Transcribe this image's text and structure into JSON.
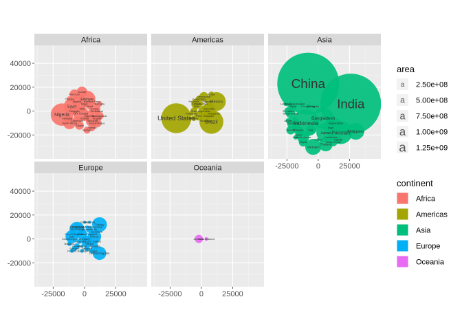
{
  "chart_data": {
    "type": "scatter",
    "facet_by": "continent",
    "xlim": [
      -40000,
      50000
    ],
    "ylim": [
      -40000,
      55000
    ],
    "x_ticks": [
      -25000,
      0,
      25000
    ],
    "y_ticks": [
      -20000,
      0,
      20000,
      40000
    ],
    "x_tick_labels": [
      "-25000",
      "0",
      "25000"
    ],
    "y_tick_labels": [
      "-20000",
      "0",
      "20000",
      "40000"
    ],
    "grid": true,
    "panels": [
      {
        "name": "Africa",
        "color": "#F8766D",
        "points": [
          {
            "label": "Nigeria",
            "x": -18000,
            "y": -3000,
            "area": 180000000
          },
          {
            "label": "Ethiopia",
            "x": 2000,
            "y": 10000,
            "area": 100000000
          },
          {
            "label": "Egypt",
            "x": -10000,
            "y": 4000,
            "area": 95000000
          },
          {
            "label": "DR Congo",
            "x": -3000,
            "y": -2000,
            "area": 80000000
          },
          {
            "label": "South Africa",
            "x": -12000,
            "y": -10000,
            "area": 55000000
          },
          {
            "label": "Tanzania",
            "x": 6000,
            "y": -8000,
            "area": 55000000
          },
          {
            "label": "Kenya",
            "x": 8000,
            "y": 2000,
            "area": 48000000
          },
          {
            "label": "Algeria",
            "x": -6000,
            "y": 8000,
            "area": 40000000
          },
          {
            "label": "Uganda",
            "x": 4000,
            "y": -4000,
            "area": 40000000
          },
          {
            "label": "Sudan",
            "x": -2000,
            "y": 16000,
            "area": 40000000
          },
          {
            "label": "Morocco",
            "x": -8000,
            "y": 14000,
            "area": 34000000
          },
          {
            "label": "Ghana",
            "x": -4000,
            "y": -12000,
            "area": 27000000
          },
          {
            "label": "Angola",
            "x": 10000,
            "y": -6000,
            "area": 25000000
          },
          {
            "label": "Mozambique",
            "x": 10000,
            "y": -10000,
            "area": 28000000
          },
          {
            "label": "Madagascar",
            "x": 12000,
            "y": -4000,
            "area": 24000000
          },
          {
            "label": "Cameroon",
            "x": -6000,
            "y": -8000,
            "area": 23000000
          },
          {
            "label": "Niger",
            "x": 0,
            "y": 6000,
            "area": 19000000
          },
          {
            "label": "Mali",
            "x": -2000,
            "y": 2000,
            "area": 17000000
          },
          {
            "label": "Zambia",
            "x": 6000,
            "y": -14000,
            "area": 16000000
          },
          {
            "label": "Malawi",
            "x": 2000,
            "y": -16000,
            "area": 17000000
          },
          {
            "label": "Zimbabwe",
            "x": 10000,
            "y": 0,
            "area": 15000000
          },
          {
            "label": "Senegal",
            "x": -14000,
            "y": -6000,
            "area": 14000000
          },
          {
            "label": "Chad",
            "x": 4000,
            "y": 4000,
            "area": 13000000
          },
          {
            "label": "Burkina Faso",
            "x": 6000,
            "y": 8000,
            "area": 17000000
          },
          {
            "label": "Somalia",
            "x": 12000,
            "y": 6000,
            "area": 11000000
          },
          {
            "label": "Tunisia",
            "x": -12000,
            "y": 10000,
            "area": 11000000
          },
          {
            "label": "Rwanda",
            "x": -8000,
            "y": 0,
            "area": 12000000
          },
          {
            "label": "Guinea",
            "x": 0,
            "y": -6000,
            "area": 12000000
          }
        ]
      },
      {
        "name": "Americas",
        "color": "#A3A500",
        "points": [
          {
            "label": "United States",
            "x": -20000,
            "y": -6000,
            "area": 320000000
          },
          {
            "label": "Brazil",
            "x": 8000,
            "y": -9000,
            "area": 205000000
          },
          {
            "label": "Mexico",
            "x": 12000,
            "y": 8000,
            "area": 125000000
          },
          {
            "label": "Colombia",
            "x": 6000,
            "y": 2000,
            "area": 48000000
          },
          {
            "label": "Argentina",
            "x": 2000,
            "y": 0,
            "area": 43000000
          },
          {
            "label": "Canada",
            "x": -4000,
            "y": 6000,
            "area": 36000000
          },
          {
            "label": "Peru",
            "x": -2000,
            "y": -4000,
            "area": 31000000
          },
          {
            "label": "Venezuela",
            "x": 2000,
            "y": 12000,
            "area": 31000000
          },
          {
            "label": "Chile",
            "x": -6000,
            "y": 0,
            "area": 18000000
          },
          {
            "label": "Ecuador",
            "x": 6000,
            "y": -4000,
            "area": 16000000
          },
          {
            "label": "Guatemala",
            "x": -2000,
            "y": 10000,
            "area": 16000000
          },
          {
            "label": "Cuba",
            "x": 8000,
            "y": 14000,
            "area": 11000000
          },
          {
            "label": "Bolivia",
            "x": -6000,
            "y": -6000,
            "area": 11000000
          },
          {
            "label": "Haiti",
            "x": -4000,
            "y": 4000,
            "area": 11000000
          },
          {
            "label": "Honduras",
            "x": 10000,
            "y": -2000,
            "area": 8000000
          },
          {
            "label": "Paraguay",
            "x": -8000,
            "y": -2000,
            "area": 7000000
          },
          {
            "label": "Nicaragua",
            "x": 4000,
            "y": -8000,
            "area": 6000000
          },
          {
            "label": "Costa Rica",
            "x": 0,
            "y": 6000,
            "area": 5000000
          },
          {
            "label": "Panama",
            "x": -6000,
            "y": 8000,
            "area": 4000000
          },
          {
            "label": "Uruguay",
            "x": 4000,
            "y": 8000,
            "area": 3400000
          }
        ]
      },
      {
        "name": "Asia",
        "color": "#00BF7D",
        "points": [
          {
            "label": "China",
            "x": -8000,
            "y": 23000,
            "area": 1370000000
          },
          {
            "label": "India",
            "x": 26000,
            "y": 6000,
            "area": 1310000000
          },
          {
            "label": "Indonesia",
            "x": -10000,
            "y": -10000,
            "area": 258000000
          },
          {
            "label": "Pakistan",
            "x": 18000,
            "y": -18000,
            "area": 190000000
          },
          {
            "label": "Bangladesh",
            "x": 4000,
            "y": -6000,
            "area": 160000000
          },
          {
            "label": "Japan",
            "x": 6000,
            "y": -18000,
            "area": 127000000
          },
          {
            "label": "Philippines",
            "x": 30000,
            "y": -17000,
            "area": 100000000
          },
          {
            "label": "Vietnam",
            "x": -4000,
            "y": -30000,
            "area": 92000000
          },
          {
            "label": "Iran",
            "x": 10000,
            "y": -14000,
            "area": 79000000
          },
          {
            "label": "Thailand",
            "x": 6000,
            "y": -28000,
            "area": 68000000
          },
          {
            "label": "Myanmar",
            "x": -20000,
            "y": -10000,
            "area": 54000000
          },
          {
            "label": "South Korea",
            "x": -12000,
            "y": -22000,
            "area": 51000000
          },
          {
            "label": "Iraq",
            "x": -6000,
            "y": -16000,
            "area": 36000000
          },
          {
            "label": "Afghanistan",
            "x": 14000,
            "y": -10000,
            "area": 33000000
          },
          {
            "label": "Saudi Arabia",
            "x": -22000,
            "y": -2000,
            "area": 32000000
          },
          {
            "label": "Malaysia",
            "x": -16000,
            "y": -16000,
            "area": 30000000
          },
          {
            "label": "Nepal",
            "x": -12000,
            "y": -26000,
            "area": 28000000
          },
          {
            "label": "Yemen",
            "x": -22000,
            "y": -16000,
            "area": 27000000
          },
          {
            "label": "Taiwan",
            "x": 16000,
            "y": -24000,
            "area": 23000000
          },
          {
            "label": "Sri Lanka",
            "x": -24000,
            "y": 0,
            "area": 21000000
          },
          {
            "label": "Syria",
            "x": -20000,
            "y": 4000,
            "area": 18000000
          },
          {
            "label": "Cambodia",
            "x": 10000,
            "y": -22000,
            "area": 15000000
          },
          {
            "label": "Jordan",
            "x": -24000,
            "y": -8000,
            "area": 9000000
          },
          {
            "label": "Israel",
            "x": -16000,
            "y": -20000,
            "area": 8000000
          },
          {
            "label": "Hong Kong",
            "x": -8000,
            "y": 4000,
            "area": 7000000
          },
          {
            "label": "Laos",
            "x": -18000,
            "y": -22000,
            "area": 7000000
          },
          {
            "label": "Lebanon",
            "x": -26000,
            "y": 6000,
            "area": 6000000
          },
          {
            "label": "Mongolia",
            "x": -4000,
            "y": 4000,
            "area": 3000000
          },
          {
            "label": "Oman",
            "x": 0,
            "y": -24000,
            "area": 4000000
          },
          {
            "label": "Kuwait",
            "x": -14000,
            "y": 6000,
            "area": 4000000
          },
          {
            "label": "Singapore",
            "x": -22000,
            "y": 6000,
            "area": 5500000
          },
          {
            "label": "North Korea",
            "x": 12000,
            "y": -26000,
            "area": 25000000
          }
        ]
      },
      {
        "name": "Europe",
        "color": "#00B0F6",
        "points": [
          {
            "label": "Germany",
            "x": -6000,
            "y": 8000,
            "area": 81000000
          },
          {
            "label": "Turkey",
            "x": 12000,
            "y": 12000,
            "area": 78000000
          },
          {
            "label": "United Kingdom",
            "x": 12000,
            "y": -12000,
            "area": 65000000
          },
          {
            "label": "France",
            "x": 8000,
            "y": 2000,
            "area": 64000000
          },
          {
            "label": "Italy",
            "x": -10000,
            "y": 2000,
            "area": 60000000
          },
          {
            "label": "Spain",
            "x": 2000,
            "y": -2000,
            "area": 46000000
          },
          {
            "label": "Poland",
            "x": -2000,
            "y": 4000,
            "area": 38000000
          },
          {
            "label": "Romania",
            "x": 8000,
            "y": -6000,
            "area": 20000000
          },
          {
            "label": "Netherlands",
            "x": 4000,
            "y": 8000,
            "area": 17000000
          },
          {
            "label": "Belgium",
            "x": 2000,
            "y": -8000,
            "area": 11000000
          },
          {
            "label": "Greece",
            "x": -6000,
            "y": -6000,
            "area": 11000000
          },
          {
            "label": "Czech Republic",
            "x": -8000,
            "y": 4000,
            "area": 10500000
          },
          {
            "label": "Portugal",
            "x": 6000,
            "y": -10000,
            "area": 10300000
          },
          {
            "label": "Sweden",
            "x": -8000,
            "y": -8000,
            "area": 9800000
          },
          {
            "label": "Hungary",
            "x": 0,
            "y": 0,
            "area": 9800000
          },
          {
            "label": "Austria",
            "x": -4000,
            "y": -2000,
            "area": 8600000
          },
          {
            "label": "Switzerland",
            "x": -6000,
            "y": 10000,
            "area": 8300000
          },
          {
            "label": "Serbia",
            "x": 4000,
            "y": -4000,
            "area": 7100000
          },
          {
            "label": "Bulgaria",
            "x": -12000,
            "y": -4000,
            "area": 7100000
          },
          {
            "label": "Denmark",
            "x": 10000,
            "y": 6000,
            "area": 5700000
          },
          {
            "label": "Finland",
            "x": -10000,
            "y": -10000,
            "area": 5500000
          },
          {
            "label": "Slovakia",
            "x": 6000,
            "y": 4000,
            "area": 5400000
          },
          {
            "label": "Norway",
            "x": -2000,
            "y": -10000,
            "area": 5200000
          },
          {
            "label": "Ireland",
            "x": 10000,
            "y": -2000,
            "area": 4700000
          },
          {
            "label": "Croatia",
            "x": -4000,
            "y": 10000,
            "area": 4200000
          },
          {
            "label": "Bosnia and Herzegovina",
            "x": 2000,
            "y": 10000,
            "area": 3500000
          },
          {
            "label": "Albania",
            "x": -2000,
            "y": -6000,
            "area": 2900000
          },
          {
            "label": "Slovenia",
            "x": 4000,
            "y": 14000,
            "area": 2100000
          },
          {
            "label": "Montenegro",
            "x": -12000,
            "y": 0,
            "area": 620000
          },
          {
            "label": "Iceland",
            "x": 0,
            "y": 14000,
            "area": 330000
          }
        ]
      },
      {
        "name": "Oceania",
        "color": "#E76BF3",
        "points": [
          {
            "label": "Australia",
            "x": -2000,
            "y": 0,
            "area": 24000000
          },
          {
            "label": "New Zealand",
            "x": 4000,
            "y": 0,
            "area": 4600000
          }
        ]
      }
    ],
    "legend_size": {
      "title": "area",
      "entries": [
        {
          "label": "2.50e+08",
          "value": 250000000
        },
        {
          "label": "5.00e+08",
          "value": 500000000
        },
        {
          "label": "7.50e+08",
          "value": 750000000
        },
        {
          "label": "1.00e+09",
          "value": 1000000000
        },
        {
          "label": "1.25e+09",
          "value": 1250000000
        }
      ]
    },
    "legend_color": {
      "title": "continent",
      "entries": [
        {
          "label": "Africa",
          "color": "#F8766D"
        },
        {
          "label": "Americas",
          "color": "#A3A500"
        },
        {
          "label": "Asia",
          "color": "#00BF7D"
        },
        {
          "label": "Europe",
          "color": "#00B0F6"
        },
        {
          "label": "Oceania",
          "color": "#E76BF3"
        }
      ]
    },
    "legend_placement": "right"
  }
}
